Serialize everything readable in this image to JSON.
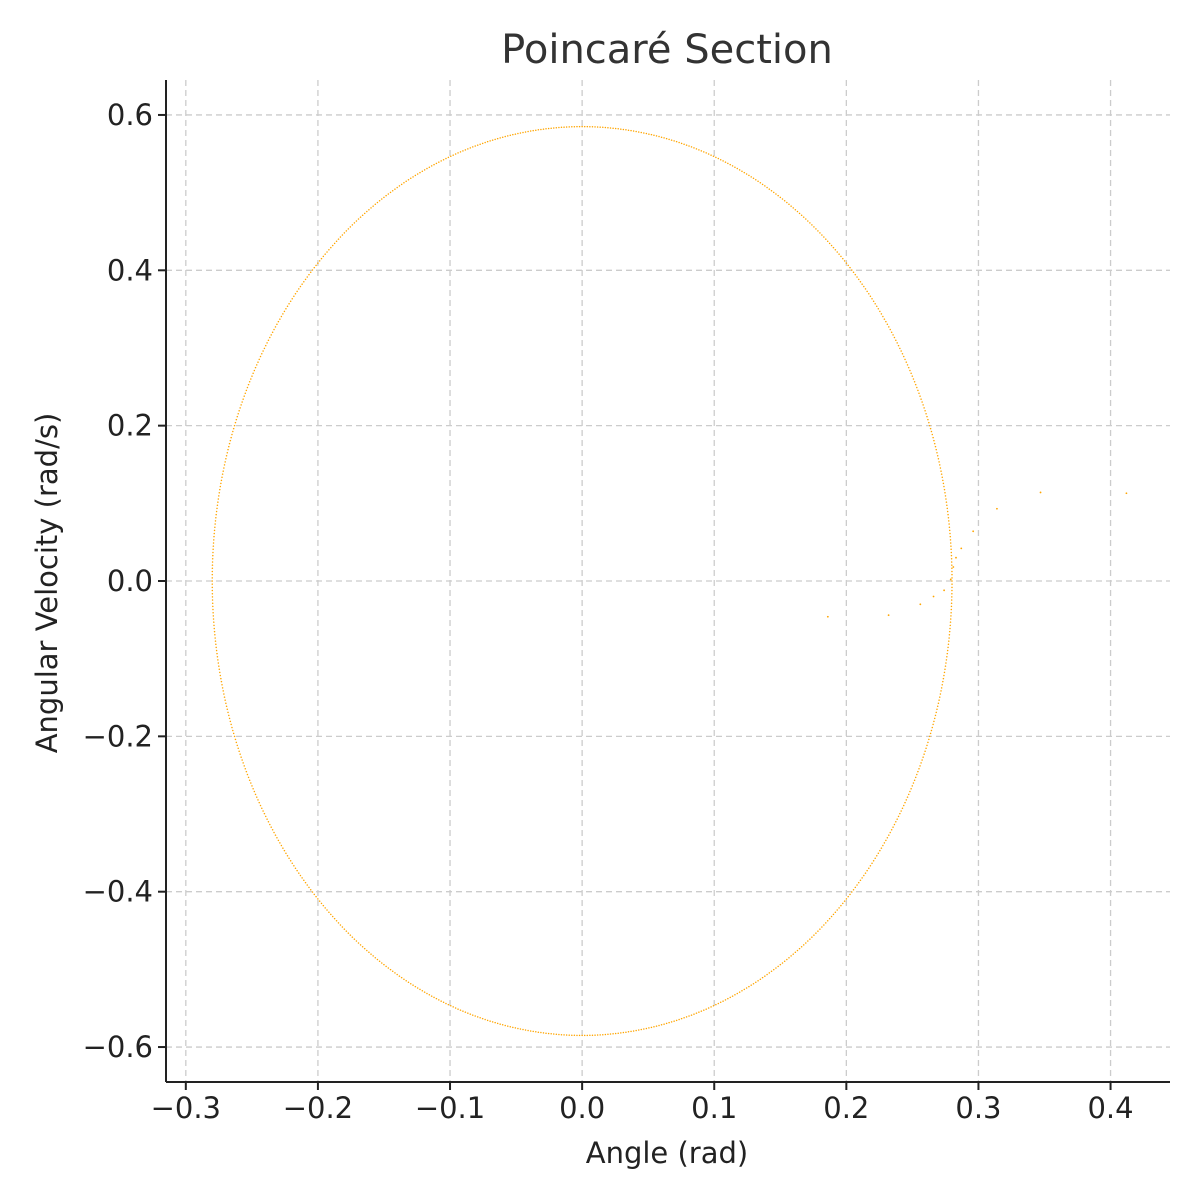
{
  "chart_data": {
    "type": "scatter",
    "title": "Poincaré Section",
    "xlabel": "Angle (rad)",
    "ylabel": "Angular Velocity (rad/s)",
    "xlim": [
      -0.315,
      0.445
    ],
    "ylim": [
      -0.645,
      0.645
    ],
    "x_ticks": [
      -0.3,
      -0.2,
      -0.1,
      0.0,
      0.1,
      0.2,
      0.3,
      0.4
    ],
    "y_ticks": [
      -0.6,
      -0.4,
      -0.2,
      0.0,
      0.2,
      0.4,
      0.6
    ],
    "x_tick_labels": [
      "−0.3",
      "−0.2",
      "−0.1",
      "0.0",
      "0.1",
      "0.2",
      "0.3",
      "0.4"
    ],
    "y_tick_labels": [
      "−0.6",
      "−0.4",
      "−0.2",
      "0.0",
      "0.2",
      "0.4",
      "0.6"
    ],
    "grid": true,
    "marker_color": "#ffa500",
    "series": [
      {
        "orbit": {
          "x_center": 0.0,
          "y_center": 0.0,
          "x_amplitude": 0.28,
          "y_amplitude": 0.585,
          "point_count": 900
        },
        "points": [
          {
            "x": 0.186,
            "y": -0.046
          },
          {
            "x": 0.232,
            "y": -0.044
          },
          {
            "x": 0.256,
            "y": -0.03
          },
          {
            "x": 0.266,
            "y": -0.02
          },
          {
            "x": 0.274,
            "y": -0.012
          },
          {
            "x": 0.279,
            "y": 0.002
          },
          {
            "x": 0.281,
            "y": 0.018
          },
          {
            "x": 0.283,
            "y": 0.03
          },
          {
            "x": 0.287,
            "y": 0.042
          },
          {
            "x": 0.296,
            "y": 0.064
          },
          {
            "x": 0.314,
            "y": 0.093
          },
          {
            "x": 0.347,
            "y": 0.114
          },
          {
            "x": 0.412,
            "y": 0.113
          }
        ]
      }
    ]
  }
}
